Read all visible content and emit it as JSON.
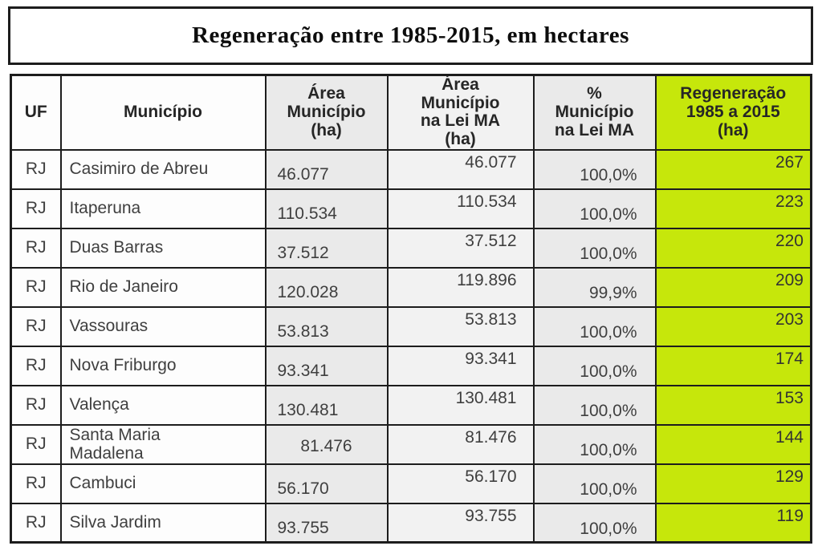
{
  "page_title": "Regeneração entre 1985-2015, em hectares",
  "table": {
    "headers": [
      {
        "label": "UF"
      },
      {
        "label": "Município"
      },
      {
        "label": "Área\nMunicípio\n(ha)"
      },
      {
        "label": "Área\nMunicípio\nna Lei MA\n(ha)"
      },
      {
        "label": "%\nMunicípio\nna Lei MA"
      },
      {
        "label": "Regeneração\n1985 a 2015\n(ha)"
      }
    ],
    "rows": [
      {
        "uf": "RJ",
        "municipio": "Casimiro de Abreu",
        "area": "46.077",
        "area_lei_ma": "46.077",
        "pct_lei_ma": "100,0%",
        "regeneracao": "267"
      },
      {
        "uf": "RJ",
        "municipio": "Itaperuna",
        "area": "110.534",
        "area_lei_ma": "110.534",
        "pct_lei_ma": "100,0%",
        "regeneracao": "223"
      },
      {
        "uf": "RJ",
        "municipio": "Duas Barras",
        "area": "37.512",
        "area_lei_ma": "37.512",
        "pct_lei_ma": "100,0%",
        "regeneracao": "220"
      },
      {
        "uf": "RJ",
        "municipio": "Rio de Janeiro",
        "area": "120.028",
        "area_lei_ma": "119.896",
        "pct_lei_ma": "99,9%",
        "regeneracao": "209"
      },
      {
        "uf": "RJ",
        "municipio": "Vassouras",
        "area": "53.813",
        "area_lei_ma": "53.813",
        "pct_lei_ma": "100,0%",
        "regeneracao": "203"
      },
      {
        "uf": "RJ",
        "municipio": "Nova Friburgo",
        "area": "93.341",
        "area_lei_ma": "93.341",
        "pct_lei_ma": "100,0%",
        "regeneracao": "174"
      },
      {
        "uf": "RJ",
        "municipio": "Valença",
        "area": "130.481",
        "area_lei_ma": "130.481",
        "pct_lei_ma": "100,0%",
        "regeneracao": "153"
      },
      {
        "uf": "RJ",
        "municipio": "Santa Maria\nMadalena",
        "area": "81.476",
        "area_lei_ma": "81.476",
        "pct_lei_ma": "100,0%",
        "regeneracao": "144"
      },
      {
        "uf": "RJ",
        "municipio": "Cambuci",
        "area": "56.170",
        "area_lei_ma": "56.170",
        "pct_lei_ma": "100,0%",
        "regeneracao": "129"
      },
      {
        "uf": "RJ",
        "municipio": "Silva Jardim",
        "area": "93.755",
        "area_lei_ma": "93.755",
        "pct_lei_ma": "100,0%",
        "regeneracao": "119"
      }
    ]
  },
  "colors": {
    "highlight_green": "#c6e70b",
    "cell_gray": "#eaeaea",
    "cell_gray_light": "#f2f2f2",
    "cell_white": "#fdfdfd",
    "border": "#1d1d1d",
    "text": "#3f3f3f",
    "header_text": "#262626"
  }
}
